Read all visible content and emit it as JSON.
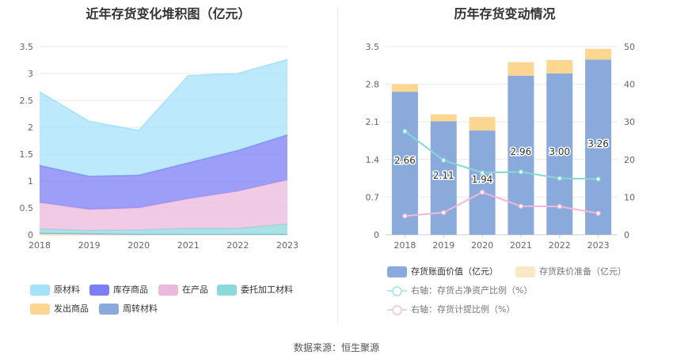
{
  "colors": {
    "raw": "#a6e1fb",
    "finished": "#7b7ef5",
    "wip": "#ecb8dc",
    "outsourced": "#8cd9dc",
    "shipped": "#fdd792",
    "revolving": "#8aaadc",
    "bar_main": "#8aaadc",
    "bar_impair": "#fdd792",
    "line_ratio": "#85d8d6",
    "line_provision": "#f0b8d8"
  },
  "source": "数据来源：恒生聚源",
  "chart_data": [
    {
      "type": "area",
      "title": "近年存货变化堆积图（亿元）",
      "x": [
        "2018",
        "2019",
        "2020",
        "2021",
        "2022",
        "2023"
      ],
      "ylim": [
        0,
        3.5
      ],
      "yticks": [
        "0",
        "0.5",
        "1",
        "1.5",
        "2",
        "2.5",
        "3",
        "3.5"
      ],
      "stacked": true,
      "grid": true,
      "legend_position": "bottom",
      "series": [
        {
          "name": "发出商品",
          "values": [
            0.03,
            0.02,
            0.01,
            0.01,
            0.01,
            0.01
          ]
        },
        {
          "name": "周转材料",
          "values": [
            0.0,
            0.0,
            0.0,
            0.0,
            0.0,
            0.0
          ]
        },
        {
          "name": "委托加工材料",
          "values": [
            0.08,
            0.06,
            0.08,
            0.11,
            0.11,
            0.19
          ]
        },
        {
          "name": "在产品",
          "values": [
            0.49,
            0.39,
            0.41,
            0.55,
            0.69,
            0.82
          ]
        },
        {
          "name": "库存商品",
          "values": [
            0.69,
            0.62,
            0.61,
            0.67,
            0.76,
            0.84
          ]
        },
        {
          "name": "原材料",
          "values": [
            1.37,
            1.02,
            0.83,
            1.62,
            1.43,
            1.4
          ]
        }
      ],
      "legend": [
        "原材料",
        "库存商品",
        "在产品",
        "委托加工材料",
        "发出商品",
        "周转材料"
      ]
    },
    {
      "type": "bar",
      "title": "历年存货变动情况",
      "categories": [
        "2018",
        "2019",
        "2020",
        "2021",
        "2022",
        "2023"
      ],
      "ylim": [
        0,
        3.5
      ],
      "yticks": [
        "0",
        "0.7",
        "1.4",
        "2.1",
        "2.8",
        "3.5"
      ],
      "y2lim": [
        0,
        50
      ],
      "y2ticks": [
        "0",
        "10",
        "20",
        "30",
        "40",
        "50"
      ],
      "grid": true,
      "legend_position": "bottom",
      "series": [
        {
          "name": "存货账面价值（亿元）",
          "values": [
            2.66,
            2.11,
            1.94,
            2.96,
            3.0,
            3.26
          ],
          "labels": [
            "2.66",
            "2.11",
            "1.94",
            "2.96",
            "3.00",
            "3.26"
          ]
        },
        {
          "name": "存货跌价准备（亿元）",
          "values": [
            0.14,
            0.13,
            0.25,
            0.25,
            0.25,
            0.2
          ]
        },
        {
          "name": "右轴：存货占净资产比例（%）",
          "axis": "right",
          "values": [
            27.5,
            19.8,
            16.5,
            16.7,
            15.0,
            14.8
          ]
        },
        {
          "name": "右轴：存货计提比例（%）",
          "axis": "right",
          "values": [
            5.0,
            5.9,
            11.3,
            7.6,
            7.5,
            5.7
          ]
        }
      ]
    }
  ]
}
